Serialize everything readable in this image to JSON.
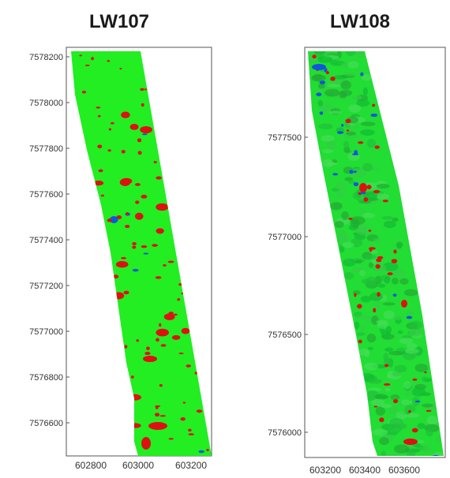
{
  "panels": [
    {
      "title": "LW107",
      "y_ticks": [
        "7578200",
        "7578000",
        "7577800",
        "7577600",
        "7577400",
        "7577200",
        "7577000",
        "7576800",
        "7576600"
      ],
      "x_ticks": [
        "602800",
        "603000",
        "603200"
      ],
      "colors": {
        "base": "#22ee22",
        "dark": "#11cc22",
        "anomaly": "#dd1111",
        "low": "#1155dd"
      }
    },
    {
      "title": "LW108",
      "y_ticks": [
        "7577500",
        "7577000",
        "7576500",
        "7576000"
      ],
      "x_ticks": [
        "603200",
        "603400",
        "603600"
      ],
      "colors": {
        "base": "#22dd33",
        "dark": "#11bb33",
        "anomaly": "#dd1111",
        "low": "#1155dd"
      }
    }
  ]
}
